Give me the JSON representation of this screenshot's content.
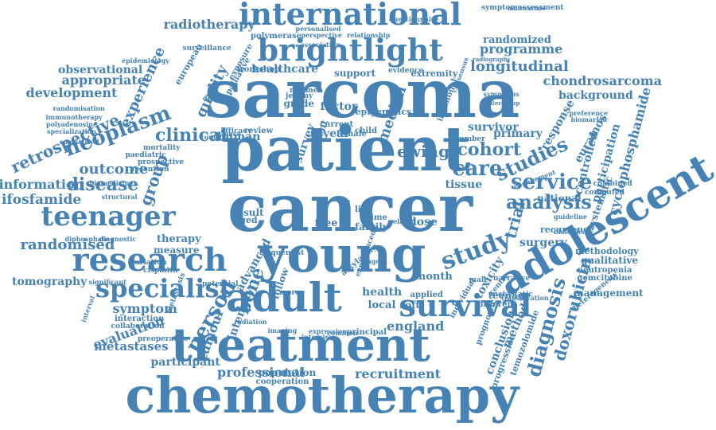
{
  "color": "#4682b4",
  "words": [
    {
      "text": "sarcoma",
      "rotation": 0
    },
    {
      "text": "patient",
      "rotation": 0
    },
    {
      "text": "cancer",
      "rotation": 0
    },
    {
      "text": "young",
      "rotation": 0
    },
    {
      "text": "chemotherapy",
      "rotation": 0
    },
    {
      "text": "treatment",
      "rotation": 0
    },
    {
      "text": "adolescent",
      "rotation": -30
    },
    {
      "text": "adult",
      "rotation": 0
    },
    {
      "text": "research",
      "rotation": 0
    },
    {
      "text": "international",
      "rotation": 0
    },
    {
      "text": "brightlight",
      "rotation": 0
    },
    {
      "text": "teenager",
      "rotation": 0
    },
    {
      "text": "survival",
      "rotation": 0
    },
    {
      "text": "specialist",
      "rotation": 0
    },
    {
      "text": "study",
      "rotation": -20
    },
    {
      "text": "service",
      "rotation": 0
    },
    {
      "text": "analysis",
      "rotation": 0
    },
    {
      "text": "cohort",
      "rotation": 0
    },
    {
      "text": "care",
      "rotation": 0
    },
    {
      "text": "studies",
      "rotation": -25
    },
    {
      "text": "ewing",
      "rotation": 0
    },
    {
      "text": "clinical",
      "rotation": 0
    },
    {
      "text": "neoplasm",
      "rotation": -20
    },
    {
      "text": "person",
      "rotation": -60
    },
    {
      "text": "bone",
      "rotation": -70
    },
    {
      "text": "disease",
      "rotation": 0
    },
    {
      "text": "randomised",
      "rotation": 0
    },
    {
      "text": "diagnosis",
      "rotation": -75
    },
    {
      "text": "doxorubicin",
      "rotation": -75
    },
    {
      "text": "trial",
      "rotation": -75
    },
    {
      "text": "longitudinal",
      "rotation": 0
    },
    {
      "text": "programme",
      "rotation": 0
    },
    {
      "text": "randomized",
      "rotation": 0
    },
    {
      "text": "retrospective",
      "rotation": -25
    },
    {
      "text": "experience",
      "rotation": -65
    },
    {
      "text": "development",
      "rotation": 0
    },
    {
      "text": "appropriate",
      "rotation": 0
    },
    {
      "text": "observational",
      "rotation": 0
    },
    {
      "text": "quality",
      "rotation": -65
    },
    {
      "text": "radiotherapy",
      "rotation": 0
    },
    {
      "text": "healthcare",
      "rotation": 0
    },
    {
      "text": "chondrosarcoma",
      "rotation": 0
    },
    {
      "text": "background",
      "rotation": 0
    },
    {
      "text": "cyclophosphamide",
      "rotation": -75
    },
    {
      "text": "participation",
      "rotation": -75
    },
    {
      "text": "controlled",
      "rotation": -75
    },
    {
      "text": "response",
      "rotation": -60
    },
    {
      "text": "euramos",
      "rotation": -60
    },
    {
      "text": "primary",
      "rotation": 0
    },
    {
      "text": "survivor",
      "rotation": 0
    },
    {
      "text": "tissue",
      "rotation": 0
    },
    {
      "text": "ifosfamide",
      "rotation": 0
    },
    {
      "text": "information",
      "rotation": 0
    },
    {
      "text": "outcome",
      "rotation": 0
    },
    {
      "text": "group",
      "rotation": -70
    },
    {
      "text": "tomography",
      "rotation": 0
    },
    {
      "text": "symptom",
      "rotation": 0
    },
    {
      "text": "evaluation",
      "rotation": -20
    },
    {
      "text": "metastases",
      "rotation": 0
    },
    {
      "text": "participant",
      "rotation": 0
    },
    {
      "text": "professional",
      "rotation": 0
    },
    {
      "text": "recruitment",
      "rotation": 0
    },
    {
      "text": "population",
      "rotation": 0
    },
    {
      "text": "england",
      "rotation": 0
    },
    {
      "text": "health",
      "rotation": 0
    },
    {
      "text": "local",
      "rotation": 0
    },
    {
      "text": "soft",
      "rotation": 0
    },
    {
      "text": "dose",
      "rotation": 0
    },
    {
      "text": "surgery",
      "rotation": 0
    },
    {
      "text": "national",
      "rotation": 0
    },
    {
      "text": "recurrence",
      "rotation": 0
    },
    {
      "text": "methodology",
      "rotation": 0
    },
    {
      "text": "qualitative",
      "rotation": 0
    },
    {
      "text": "management",
      "rotation": 0
    },
    {
      "text": "conclusion",
      "rotation": -70
    },
    {
      "text": "method",
      "rotation": -65
    },
    {
      "text": "toxicity",
      "rotation": -60
    },
    {
      "text": "month",
      "rotation": 0
    },
    {
      "text": "teenage",
      "rotation": 0
    },
    {
      "text": "systematic",
      "rotation": -70
    },
    {
      "text": "tumour",
      "rotation": -70
    },
    {
      "text": "intensity",
      "rotation": -70
    },
    {
      "text": "therapy",
      "rotation": 0
    },
    {
      "text": "measure",
      "rotation": 0
    },
    {
      "text": "result",
      "rotation": 0
    },
    {
      "text": "aged",
      "rotation": 0
    },
    {
      "text": "human",
      "rotation": 0
    },
    {
      "text": "year",
      "rotation": 0
    },
    {
      "text": "median",
      "rotation": -70
    },
    {
      "text": "factor",
      "rotation": 0
    },
    {
      "text": "grade",
      "rotation": 0
    },
    {
      "text": "support",
      "rotation": 0
    },
    {
      "text": "extremity",
      "rotation": 0
    },
    {
      "text": "evidence",
      "rotation": 0
    },
    {
      "text": "polymerase",
      "rotation": 0
    },
    {
      "text": "surveillance",
      "rotation": 0
    },
    {
      "text": "european",
      "rotation": -60
    },
    {
      "text": "palliative",
      "rotation": -60
    },
    {
      "text": "exposure",
      "rotation": -60
    },
    {
      "text": "symptomassessment",
      "rotation": 0
    },
    {
      "text": "epidemiology",
      "rotation": 0
    },
    {
      "text": "immunotherapy",
      "rotation": 0
    },
    {
      "text": "polyadenosine",
      "rotation": 0
    },
    {
      "text": "specialization",
      "rotation": 0
    },
    {
      "text": "randomisation",
      "rotation": 0
    },
    {
      "text": "specialized",
      "rotation": 0
    },
    {
      "text": "mortality",
      "rotation": 0
    },
    {
      "text": "paediatric",
      "rotation": 0
    },
    {
      "text": "prospective",
      "rotation": 0
    },
    {
      "text": "retention",
      "rotation": 0
    },
    {
      "text": "biomedicine",
      "rotation": 0
    },
    {
      "text": "structural",
      "rotation": 0
    },
    {
      "text": "diphosphate",
      "rotation": 0
    },
    {
      "text": "diagnostic",
      "rotation": 0
    },
    {
      "text": "variation",
      "rotation": 0
    },
    {
      "text": "cisplatin",
      "rotation": 0
    },
    {
      "text": "significant",
      "rotation": 0
    },
    {
      "text": "interaction",
      "rotation": 0
    },
    {
      "text": "collaboration",
      "rotation": 0
    },
    {
      "text": "preoperative",
      "rotation": 0
    },
    {
      "text": "radiation",
      "rotation": 0
    },
    {
      "text": "imaging",
      "rotation": 0
    },
    {
      "text": "expression",
      "rotation": 0
    },
    {
      "text": "principal",
      "rotation": 0
    },
    {
      "text": "cooperation",
      "rotation": 0
    },
    {
      "text": "applied",
      "rotation": 0
    },
    {
      "text": "different",
      "rotation": 0
    },
    {
      "text": "narrative",
      "rotation": 0
    },
    {
      "text": "metastatic",
      "rotation": 0
    },
    {
      "text": "translocation",
      "rotation": 0
    },
    {
      "text": "neutropenia",
      "rotation": 0
    },
    {
      "text": "gemcitabine",
      "rotation": 0
    },
    {
      "text": "guideline",
      "rotation": 0
    },
    {
      "text": "biological",
      "rotation": 0
    },
    {
      "text": "computed",
      "rotation": 0
    },
    {
      "text": "combined",
      "rotation": 0
    },
    {
      "text": "symptoms",
      "rotation": 0
    },
    {
      "text": "number",
      "rotation": 0
    },
    {
      "text": "current",
      "rotation": 0
    },
    {
      "text": "female",
      "rotation": 0
    },
    {
      "text": "child",
      "rotation": 0
    },
    {
      "text": "jeremy",
      "rotation": 0
    },
    {
      "text": "regimen",
      "rotation": 0
    },
    {
      "text": "workshop",
      "rotation": 0
    },
    {
      "text": "survey",
      "rotation": -70
    },
    {
      "text": "event",
      "rotation": -70
    },
    {
      "text": "review",
      "rotation": 0
    },
    {
      "text": "efficacy",
      "rotation": 0
    },
    {
      "text": "science",
      "rotation": 0
    },
    {
      "text": "control",
      "rotation": 0
    },
    {
      "text": "design",
      "rotation": 0
    },
    {
      "text": "intergroup",
      "rotation": 0
    },
    {
      "text": "preference",
      "rotation": 0
    },
    {
      "text": "biomarker",
      "rotation": 0
    },
    {
      "text": "multivariate",
      "rotation": 0
    },
    {
      "text": "questionnaire",
      "rotation": 0
    },
    {
      "text": "relationship",
      "rotation": 0
    },
    {
      "text": "perspective",
      "rotation": 0
    },
    {
      "text": "association",
      "rotation": 0
    },
    {
      "text": "personalised",
      "rotation": 0
    },
    {
      "text": "radiography",
      "rotation": 0
    },
    {
      "text": "epigenetics",
      "rotation": 0
    },
    {
      "text": "infusional",
      "rotation": -70
    },
    {
      "text": "consensus",
      "rotation": -70
    },
    {
      "text": "progression",
      "rotation": -70
    },
    {
      "text": "temozolomide",
      "rotation": -70
    },
    {
      "text": "prognostic",
      "rotation": -70
    },
    {
      "text": "individual",
      "rotation": -60
    },
    {
      "text": "advanced",
      "rotation": -60
    },
    {
      "text": "follow",
      "rotation": -70
    },
    {
      "text": "more",
      "rotation": 0
    },
    {
      "text": "family",
      "rotation": 0
    },
    {
      "text": "time",
      "rotation": 0
    },
    {
      "text": "free",
      "rotation": 0
    },
    {
      "text": "data",
      "rotation": -70
    },
    {
      "text": "life",
      "rotation": 0
    },
    {
      "text": "male",
      "rotation": 0
    },
    {
      "text": "centre",
      "rotation": -50
    },
    {
      "text": "alkylating",
      "rotation": -40
    },
    {
      "text": "experienced",
      "rotation": -70
    },
    {
      "text": "agent",
      "rotation": 0
    },
    {
      "text": "related",
      "rotation": 0
    },
    {
      "text": "common",
      "rotation": 0
    },
    {
      "text": "interview",
      "rotation": 0
    },
    {
      "text": "frequentist",
      "rotation": 0
    },
    {
      "text": "metastasis",
      "rotation": -70
    },
    {
      "text": "potential",
      "rotation": 0
    },
    {
      "text": "interval",
      "rotation": -70
    },
    {
      "text": "heterogeneity",
      "rotation": -40
    },
    {
      "text": "engagement",
      "rotation": -20
    },
    {
      "text": "partnership",
      "rotation": -40
    }
  ]
}
